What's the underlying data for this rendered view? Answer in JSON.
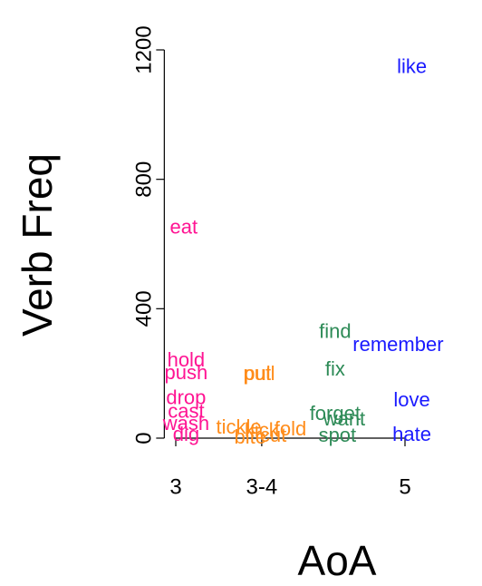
{
  "chart_data": {
    "type": "scatter",
    "xlabel": "AoA",
    "ylabel": "Verb Freq",
    "xlim": [
      2.9,
      5.4
    ],
    "ylim": [
      0,
      1200
    ],
    "xticks": [
      3,
      {
        "value": 3.75,
        "label": "3-4"
      },
      5
    ],
    "yticks": [
      0,
      400,
      800,
      1200
    ],
    "points": [
      {
        "label": "like",
        "x": 5.06,
        "y": 1145,
        "color": "#1a1aff"
      },
      {
        "label": "eat",
        "x": 3.07,
        "y": 648,
        "color": "#ff1493"
      },
      {
        "label": "find",
        "x": 4.39,
        "y": 326,
        "color": "#2e8b57"
      },
      {
        "label": "remember",
        "x": 4.94,
        "y": 286,
        "color": "#1a1aff"
      },
      {
        "label": "fix",
        "x": 4.39,
        "y": 210,
        "color": "#2e8b57"
      },
      {
        "label": "hold",
        "x": 3.09,
        "y": 238,
        "color": "#ff1493"
      },
      {
        "label": "push",
        "x": 3.09,
        "y": 199,
        "color": "#ff1493"
      },
      {
        "label": "pull",
        "x": 3.73,
        "y": 196,
        "color": "#ff8c1a"
      },
      {
        "label": "put",
        "x": 3.71,
        "y": 196,
        "color": "#ff8c1a"
      },
      {
        "label": "drop",
        "x": 3.09,
        "y": 121,
        "color": "#ff1493"
      },
      {
        "label": "love",
        "x": 5.06,
        "y": 115,
        "color": "#1a1aff"
      },
      {
        "label": "forget",
        "x": 4.39,
        "y": 73,
        "color": "#2e8b57"
      },
      {
        "label": "want",
        "x": 4.47,
        "y": 56,
        "color": "#2e8b57"
      },
      {
        "label": "cast",
        "x": 3.09,
        "y": 79,
        "color": "#ff1493"
      },
      {
        "label": "wash",
        "x": 3.09,
        "y": 42,
        "color": "#ff1493"
      },
      {
        "label": "dig",
        "x": 3.09,
        "y": 8,
        "color": "#ff1493"
      },
      {
        "label": "spot",
        "x": 4.41,
        "y": 5,
        "color": "#2e8b57"
      },
      {
        "label": "hate",
        "x": 5.06,
        "y": 8,
        "color": "#1a1aff"
      },
      {
        "label": "tickle",
        "x": 3.55,
        "y": 30,
        "color": "#ff8c1a"
      },
      {
        "label": "kick",
        "x": 3.75,
        "y": 20,
        "color": "#ff8c1a"
      },
      {
        "label": "cut",
        "x": 3.85,
        "y": 5,
        "color": "#ff8c1a"
      },
      {
        "label": "fold",
        "x": 4.0,
        "y": 25,
        "color": "#ff8c1a"
      },
      {
        "label": "bite",
        "x": 3.65,
        "y": 0,
        "color": "#ff8c1a"
      }
    ]
  }
}
